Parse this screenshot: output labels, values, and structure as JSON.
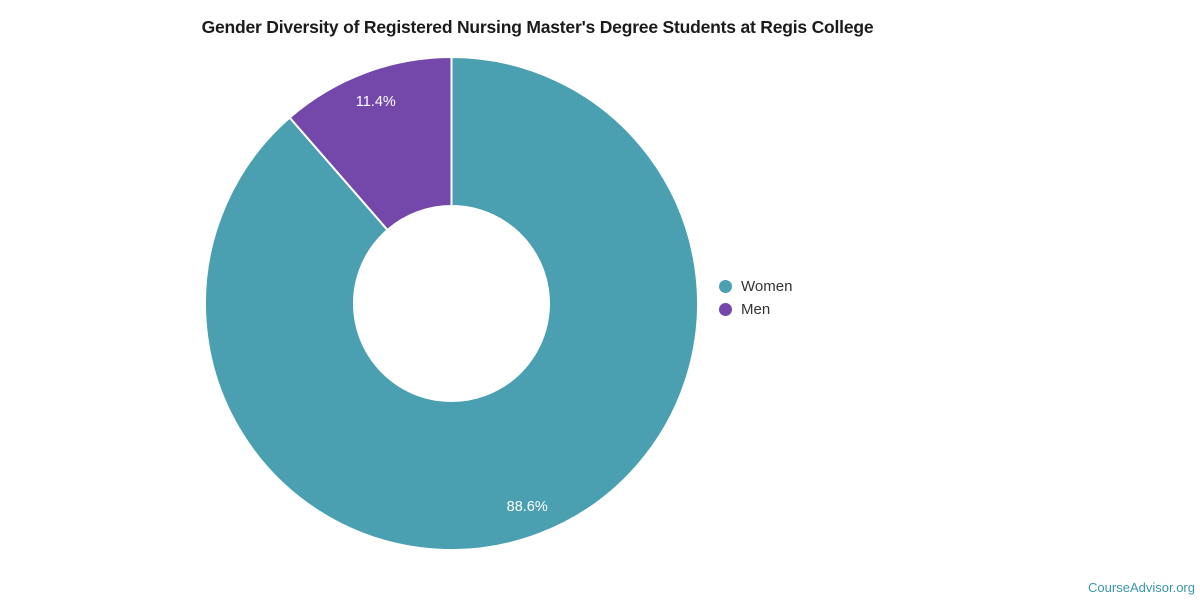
{
  "chart_data": {
    "type": "pie",
    "subtype": "donut",
    "title": "Gender Diversity of Registered Nursing Master's Degree Students at Regis College",
    "series": [
      {
        "name": "Women",
        "value": 88.6,
        "label": "88.6%",
        "color": "#4aa0b0"
      },
      {
        "name": "Men",
        "value": 11.4,
        "label": "11.4%",
        "color": "#7448ab"
      }
    ],
    "start_angle": "top",
    "direction": "clockwise",
    "legend_position": "right-middle",
    "slice_label_color": "#ffffff",
    "slice_border_color": "#ffffff"
  },
  "attribution": {
    "label": "CourseAdvisor.org",
    "color": "#3895ad"
  },
  "style": {
    "title_color": "#1b1b1b",
    "legend_text_color": "#333333",
    "background": "#ffffff"
  }
}
